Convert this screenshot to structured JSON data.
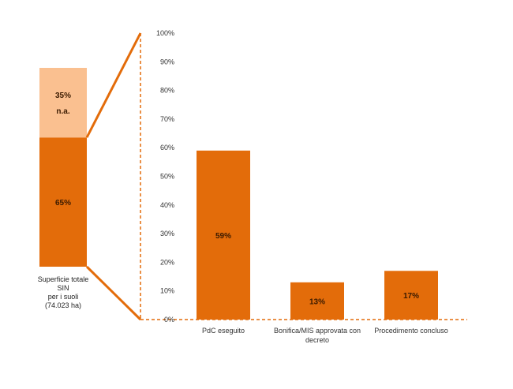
{
  "chart_data": {
    "type": "bar",
    "colors": {
      "primary": "#E36C0A",
      "light": "#FAC090",
      "guide": "#E36C0A"
    },
    "stacked_bar": {
      "caption_lines": [
        "Superficie totale",
        "SIN",
        "per i suoli",
        "(74.023 ha)"
      ],
      "segments": [
        {
          "label": "65%",
          "value": 65
        },
        {
          "label": "35%",
          "sublabel": "n.a.",
          "value": 35
        }
      ]
    },
    "main": {
      "ylim": [
        0,
        100
      ],
      "yticks": [
        "0%",
        "10%",
        "20%",
        "30%",
        "40%",
        "50%",
        "60%",
        "70%",
        "80%",
        "90%",
        "100%"
      ],
      "categories": [
        {
          "lines": [
            "PdC eseguito"
          ]
        },
        {
          "lines": [
            "Bonifica/MIS approvata con",
            "decreto"
          ]
        },
        {
          "lines": [
            "Procedimento concluso"
          ]
        }
      ],
      "values": [
        59,
        13,
        17
      ],
      "data_labels": [
        "59%",
        "13%",
        "17%"
      ]
    }
  }
}
